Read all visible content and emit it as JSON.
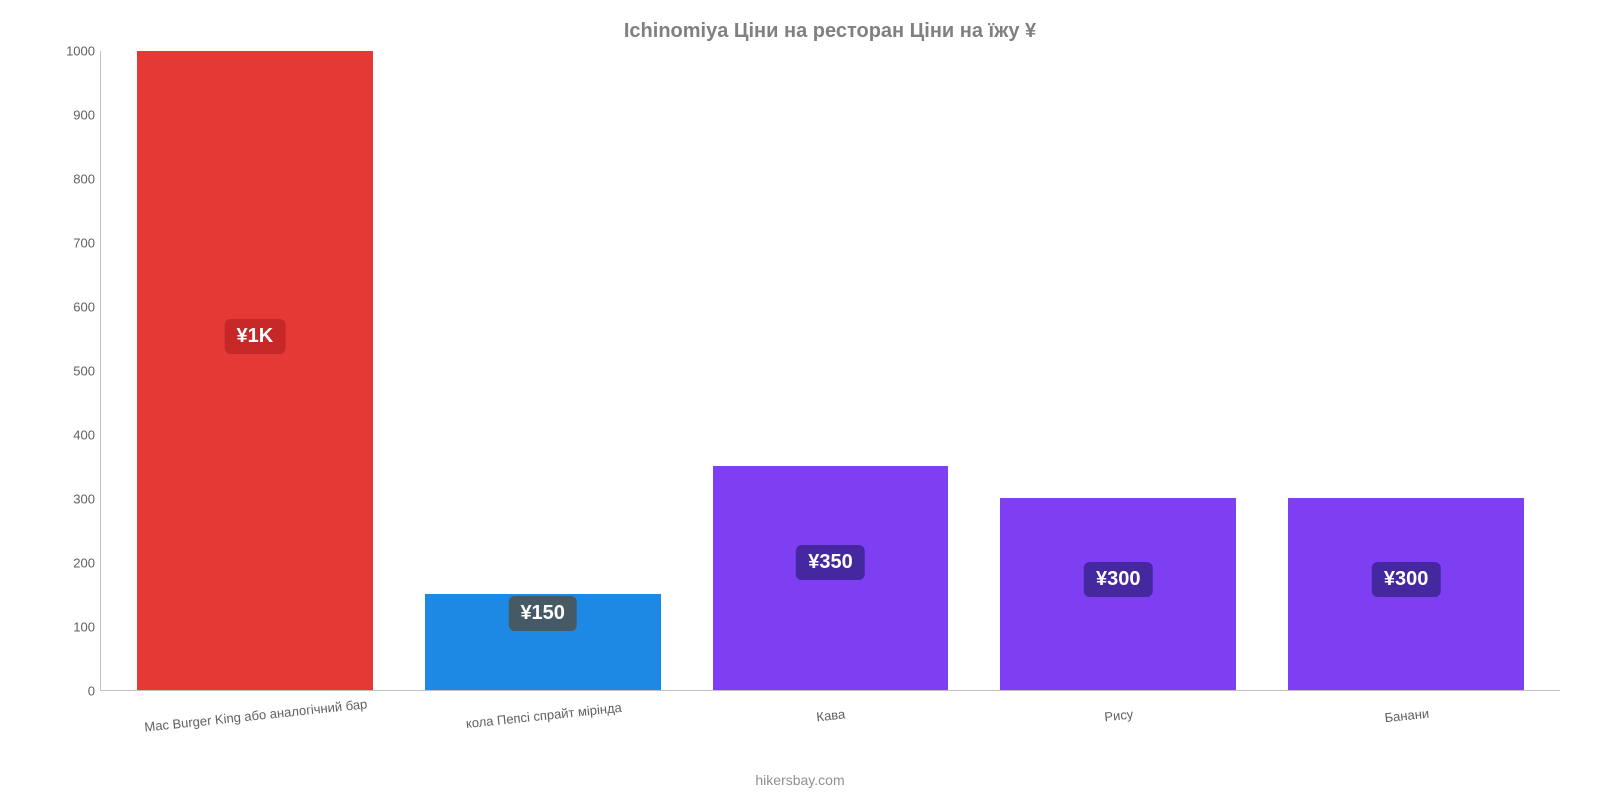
{
  "chart": {
    "type": "bar",
    "title": "Ichinomiya Ціни на ресторан Ціни на їжу ¥",
    "title_color": "#808080",
    "title_fontsize": 20,
    "background_color": "#ffffff",
    "axis_color": "#c0c0c0",
    "tick_label_color": "#606060",
    "tick_fontsize": 13,
    "bar_width_pct": 82,
    "x_label_rotate_deg": -6,
    "y": {
      "min": 0,
      "max": 1000,
      "ticks": [
        0,
        100,
        200,
        300,
        400,
        500,
        600,
        700,
        800,
        900,
        1000
      ]
    },
    "bars": [
      {
        "label": "Mac Burger King або аналогічний бар",
        "value": 1000,
        "display": "¥1K",
        "color": "#e53935",
        "badge_bg": "#c62828",
        "badge_top_pct": 42
      },
      {
        "label": "кола Пепсі спрайт мірінда",
        "value": 150,
        "display": "¥150",
        "color": "#1e88e5",
        "badge_bg": "#455a64",
        "badge_top_pct": 2
      },
      {
        "label": "Кава",
        "value": 350,
        "display": "¥350",
        "color": "#7e3ff2",
        "badge_bg": "#4527a0",
        "badge_top_pct": 35
      },
      {
        "label": "Рису",
        "value": 300,
        "display": "¥300",
        "color": "#7e3ff2",
        "badge_bg": "#4527a0",
        "badge_top_pct": 33
      },
      {
        "label": "Банани",
        "value": 300,
        "display": "¥300",
        "color": "#7e3ff2",
        "badge_bg": "#4527a0",
        "badge_top_pct": 33
      }
    ],
    "badge_fontsize": 20,
    "footer": "hikersbay.com",
    "footer_color": "#909090",
    "footer_fontsize": 14
  }
}
